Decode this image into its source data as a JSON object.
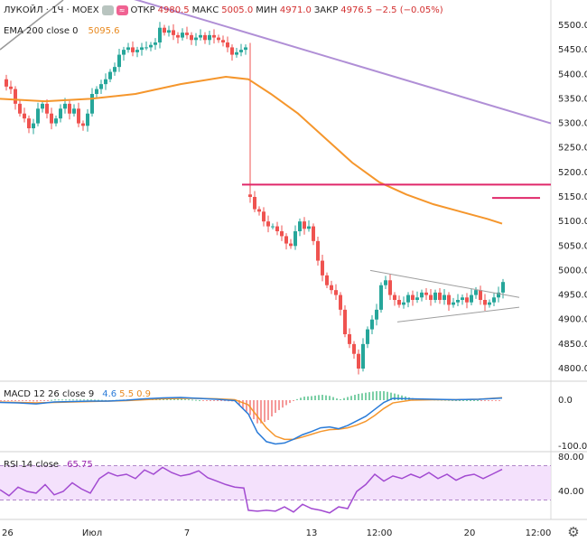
{
  "header": {
    "symbol": "ЛУКОЙЛ · 1Ч · MOEX",
    "open_label": "ОТКР",
    "open": "4980.5",
    "high_label": "МАКС",
    "high": "5005.0",
    "low_label": "МИН",
    "low": "4971.0",
    "close_label": "ЗАКР",
    "close": "4976.5",
    "change": "−2.5 (−0.05%)"
  },
  "ema": {
    "label": "EMA 200 close 0",
    "value": "5095.6"
  },
  "macd": {
    "label": "MACD 12 26 close 9",
    "v1": "4.6",
    "v2": "5.5",
    "v3": "0.9"
  },
  "rsi": {
    "label": "RSI 14 close",
    "value": "65.75"
  },
  "colors": {
    "up": "#26a69a",
    "down": "#ef5350",
    "ema": "#f5962c",
    "trend": "#b08fd6",
    "level": "#e0286a",
    "macd": "#2a7bd8",
    "signal": "#f5962c",
    "rsi": "#a24ad1"
  },
  "chart_data": [
    {
      "type": "candlestick",
      "title": "ЛУКОЙЛ · 1Ч · MOEX",
      "ylim": [
        4760,
        5560
      ],
      "yticks": [
        "5500.0",
        "5450.0",
        "5400.0",
        "5350.0",
        "5300.0",
        "5250.0",
        "5200.0",
        "5150.0",
        "5100.0",
        "5050.0",
        "5000.0",
        "4950.0",
        "4900.0",
        "4850.0",
        "4800.0"
      ],
      "xticks": [
        "26",
        "Июл",
        "7",
        "13",
        "12:00",
        "20",
        "12:00"
      ],
      "close_path": [
        [
          0,
          5390
        ],
        [
          5,
          5375
        ],
        [
          10,
          5370
        ],
        [
          15,
          5340
        ],
        [
          20,
          5320
        ],
        [
          25,
          5310
        ],
        [
          30,
          5290
        ],
        [
          35,
          5300
        ],
        [
          40,
          5330
        ],
        [
          45,
          5340
        ],
        [
          50,
          5320
        ],
        [
          55,
          5300
        ],
        [
          60,
          5310
        ],
        [
          65,
          5330
        ],
        [
          70,
          5340
        ],
        [
          75,
          5320
        ],
        [
          80,
          5330
        ],
        [
          85,
          5300
        ],
        [
          90,
          5295
        ],
        [
          95,
          5320
        ],
        [
          100,
          5360
        ],
        [
          105,
          5370
        ],
        [
          110,
          5380
        ],
        [
          115,
          5390
        ],
        [
          120,
          5405
        ],
        [
          125,
          5415
        ],
        [
          130,
          5440
        ],
        [
          135,
          5450
        ],
        [
          140,
          5455
        ],
        [
          145,
          5445
        ],
        [
          150,
          5450
        ],
        [
          155,
          5455
        ],
        [
          160,
          5455
        ],
        [
          165,
          5460
        ],
        [
          170,
          5465
        ],
        [
          175,
          5495
        ],
        [
          180,
          5485
        ],
        [
          185,
          5490
        ],
        [
          190,
          5480
        ],
        [
          195,
          5475
        ],
        [
          200,
          5485
        ],
        [
          205,
          5480
        ],
        [
          210,
          5470
        ],
        [
          215,
          5475
        ],
        [
          220,
          5480
        ],
        [
          225,
          5470
        ],
        [
          230,
          5480
        ],
        [
          235,
          5475
        ],
        [
          240,
          5470
        ],
        [
          245,
          5465
        ],
        [
          250,
          5455
        ],
        [
          255,
          5440
        ],
        [
          260,
          5445
        ],
        [
          265,
          5450
        ],
        [
          270,
          5455
        ],
        [
          275,
          5150
        ],
        [
          280,
          5125
        ],
        [
          285,
          5120
        ],
        [
          290,
          5100
        ],
        [
          295,
          5090
        ],
        [
          300,
          5090
        ],
        [
          305,
          5080
        ],
        [
          310,
          5070
        ],
        [
          315,
          5055
        ],
        [
          320,
          5050
        ],
        [
          325,
          5080
        ],
        [
          330,
          5100
        ],
        [
          335,
          5085
        ],
        [
          340,
          5090
        ],
        [
          345,
          5060
        ],
        [
          350,
          5020
        ],
        [
          355,
          4990
        ],
        [
          360,
          4970
        ],
        [
          365,
          4960
        ],
        [
          370,
          4950
        ],
        [
          375,
          4920
        ],
        [
          380,
          4870
        ],
        [
          385,
          4850
        ],
        [
          390,
          4830
        ],
        [
          395,
          4800
        ],
        [
          400,
          4850
        ],
        [
          405,
          4880
        ],
        [
          410,
          4900
        ],
        [
          415,
          4920
        ],
        [
          420,
          4970
        ],
        [
          425,
          4980
        ],
        [
          430,
          4950
        ],
        [
          435,
          4940
        ],
        [
          440,
          4930
        ],
        [
          445,
          4935
        ],
        [
          450,
          4950
        ],
        [
          455,
          4940
        ],
        [
          460,
          4945
        ],
        [
          465,
          4955
        ],
        [
          470,
          4950
        ],
        [
          475,
          4940
        ],
        [
          480,
          4955
        ],
        [
          485,
          4940
        ],
        [
          490,
          4950
        ],
        [
          495,
          4930
        ],
        [
          500,
          4935
        ],
        [
          505,
          4940
        ],
        [
          510,
          4945
        ],
        [
          515,
          4935
        ],
        [
          520,
          4950
        ],
        [
          525,
          4960
        ],
        [
          530,
          4940
        ],
        [
          535,
          4930
        ],
        [
          540,
          4935
        ],
        [
          545,
          4945
        ],
        [
          550,
          4955
        ],
        [
          555,
          4976.5
        ]
      ],
      "ema200": [
        [
          0,
          5350
        ],
        [
          50,
          5345
        ],
        [
          100,
          5350
        ],
        [
          150,
          5360
        ],
        [
          200,
          5380
        ],
        [
          250,
          5395
        ],
        [
          275,
          5390
        ],
        [
          300,
          5360
        ],
        [
          330,
          5320
        ],
        [
          360,
          5270
        ],
        [
          390,
          5220
        ],
        [
          420,
          5180
        ],
        [
          450,
          5155
        ],
        [
          480,
          5135
        ],
        [
          510,
          5120
        ],
        [
          540,
          5105
        ],
        [
          556,
          5095.6
        ]
      ],
      "trendline": [
        [
          100,
          5580
        ],
        [
          610,
          5300
        ]
      ],
      "level_line": [
        [
          268,
          5175
        ],
        [
          610,
          5175
        ]
      ],
      "level_short": [
        [
          545,
          5148
        ],
        [
          598,
          5148
        ]
      ],
      "triangle_upper": [
        [
          410,
          5000
        ],
        [
          575,
          4945
        ]
      ],
      "triangle_lower": [
        [
          440,
          4895
        ],
        [
          575,
          4925
        ]
      ]
    },
    {
      "type": "line",
      "title": "MACD 12 26 close 9",
      "ylim": [
        -105,
        25
      ],
      "yticks": [
        "0.0",
        "-100.0"
      ],
      "series": [
        {
          "name": "MACD",
          "x": [
            0,
            20,
            40,
            60,
            80,
            100,
            120,
            140,
            160,
            180,
            200,
            220,
            240,
            260,
            275,
            285,
            295,
            305,
            315,
            325,
            335,
            345,
            355,
            365,
            375,
            385,
            395,
            405,
            415,
            425,
            435,
            455,
            480,
            505,
            530,
            556
          ],
          "values": [
            -5,
            -6,
            -8,
            -4,
            -3,
            -2,
            -2,
            0,
            3,
            5,
            6,
            4,
            2,
            -1,
            -30,
            -70,
            -90,
            -95,
            -93,
            -85,
            -75,
            -68,
            -60,
            -58,
            -62,
            -55,
            -45,
            -35,
            -20,
            -5,
            4,
            3,
            2,
            1,
            2,
            4.6
          ]
        },
        {
          "name": "Signal",
          "x": [
            0,
            20,
            40,
            60,
            80,
            100,
            120,
            140,
            160,
            180,
            200,
            220,
            240,
            260,
            275,
            285,
            295,
            305,
            315,
            325,
            335,
            345,
            355,
            365,
            375,
            385,
            395,
            405,
            415,
            425,
            435,
            455,
            480,
            505,
            530,
            556
          ],
          "values": [
            -4,
            -5,
            -6,
            -5,
            -4,
            -3,
            -2,
            -1,
            1,
            3,
            4,
            4,
            3,
            1,
            -10,
            -35,
            -60,
            -78,
            -85,
            -85,
            -80,
            -74,
            -68,
            -64,
            -63,
            -60,
            -54,
            -46,
            -33,
            -18,
            -6,
            0,
            1,
            1,
            2,
            5.5
          ]
        }
      ]
    },
    {
      "type": "line",
      "title": "RSI 14 close",
      "ylim": [
        15,
        80
      ],
      "yticks": [
        "80.00",
        "40.00"
      ],
      "bands": [
        30,
        70
      ],
      "series": [
        {
          "name": "RSI",
          "x": [
            0,
            10,
            20,
            30,
            40,
            50,
            60,
            70,
            80,
            90,
            100,
            110,
            120,
            130,
            140,
            150,
            160,
            170,
            180,
            190,
            200,
            210,
            220,
            230,
            240,
            250,
            260,
            270,
            275,
            285,
            295,
            305,
            315,
            325,
            335,
            345,
            355,
            365,
            375,
            385,
            395,
            405,
            415,
            425,
            435,
            445,
            455,
            465,
            475,
            485,
            495,
            505,
            515,
            525,
            535,
            545,
            556
          ],
          "values": [
            42,
            35,
            45,
            40,
            38,
            48,
            36,
            40,
            50,
            43,
            38,
            55,
            62,
            58,
            60,
            55,
            65,
            60,
            68,
            62,
            58,
            60,
            64,
            56,
            52,
            48,
            45,
            44,
            18,
            17,
            18,
            17,
            22,
            16,
            25,
            20,
            18,
            15,
            22,
            20,
            40,
            48,
            60,
            52,
            58,
            55,
            60,
            56,
            62,
            55,
            60,
            53,
            58,
            60,
            55,
            60,
            65.75
          ]
        }
      ]
    }
  ]
}
